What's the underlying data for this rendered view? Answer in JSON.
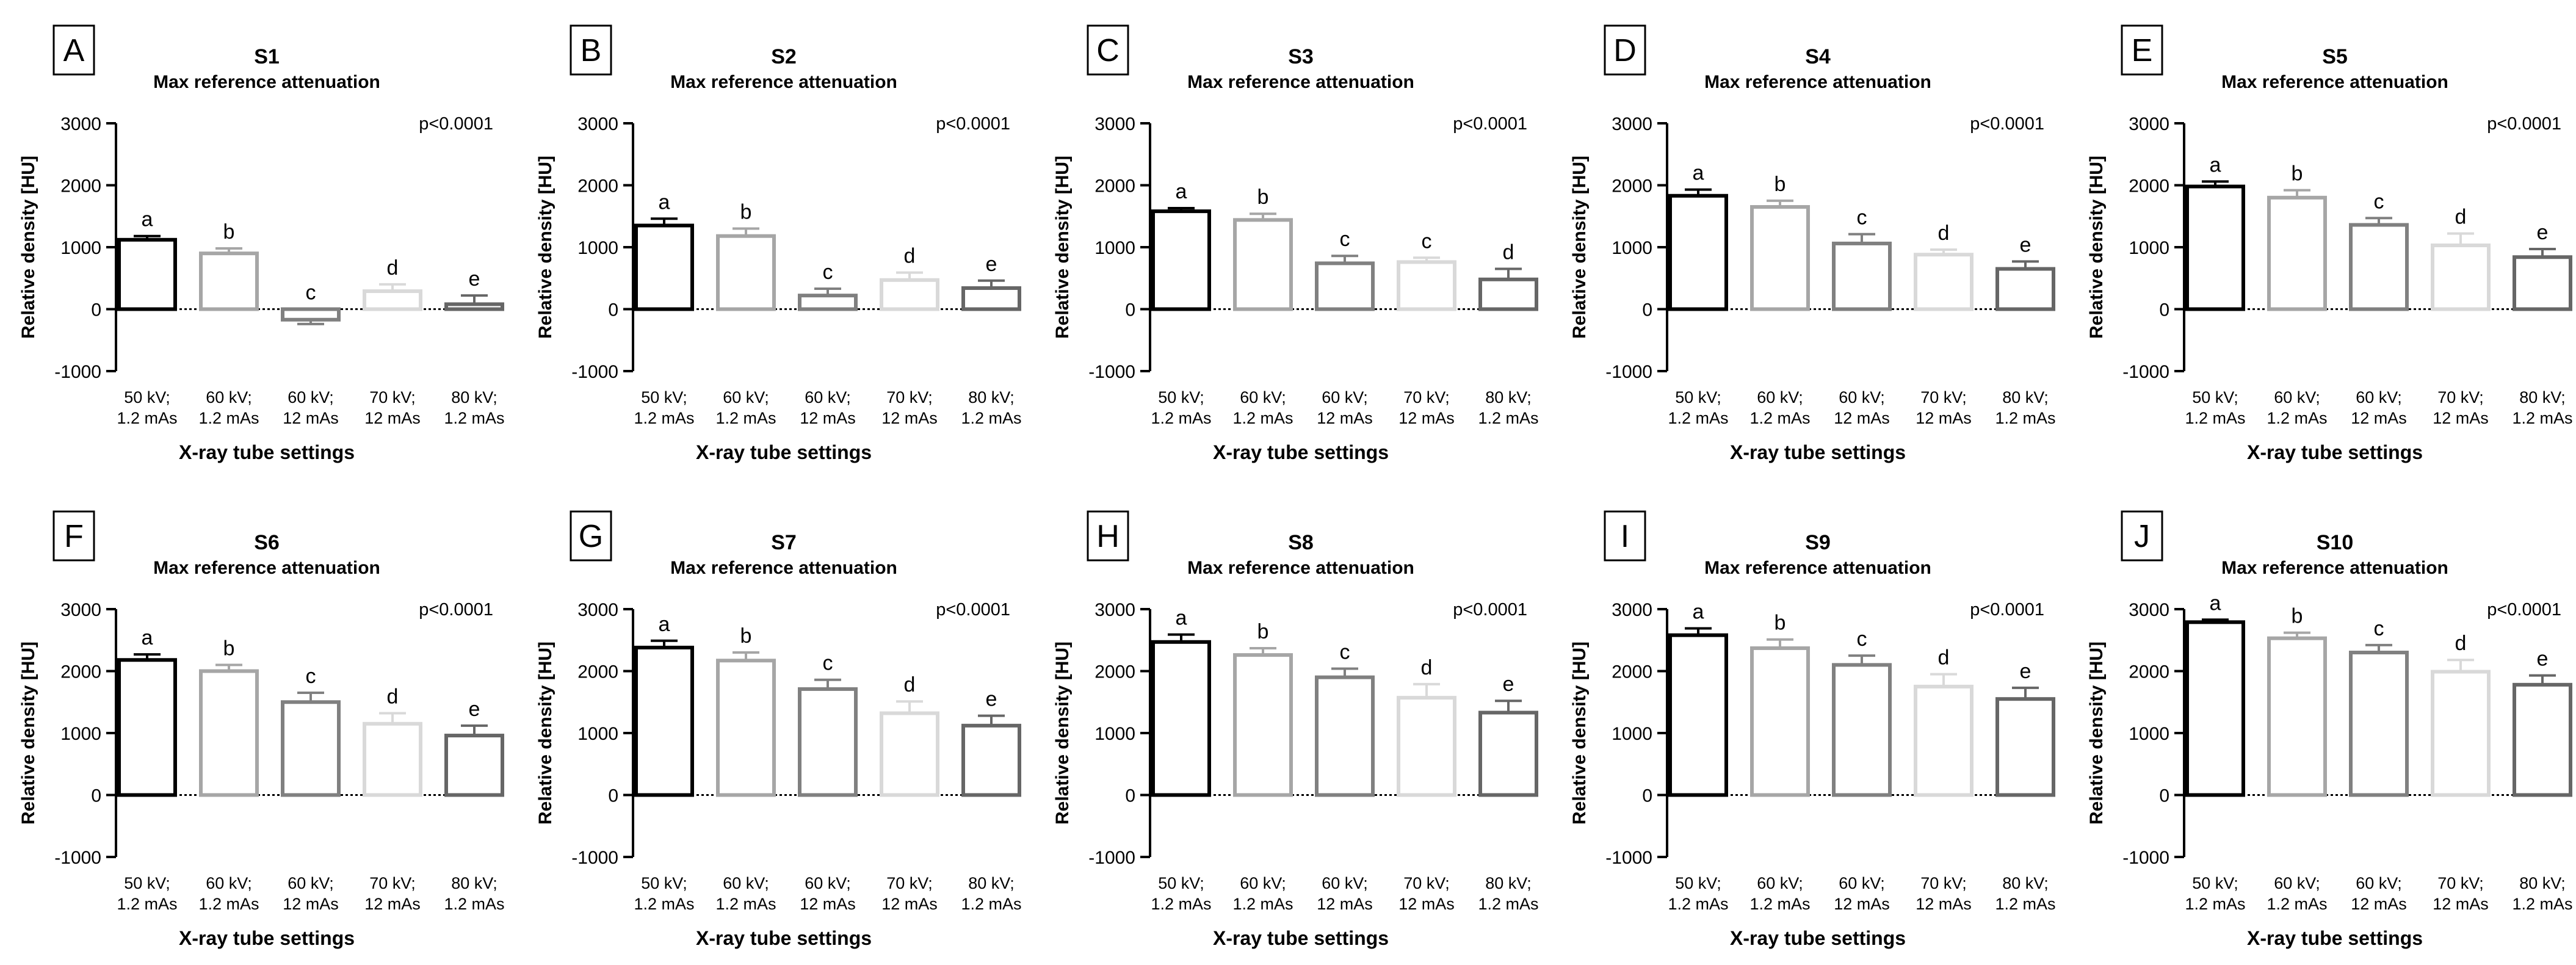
{
  "figure": {
    "ylabel": "Relative density [HU]",
    "xlabel": "X-ray tube settings",
    "subtitle": "Max reference attenuation",
    "categories": [
      [
        "50 kV;",
        "1.2 mAs"
      ],
      [
        "60 kV;",
        "1.2 mAs"
      ],
      [
        "60 kV;",
        "12 mAs"
      ],
      [
        "70 kV;",
        "12 mAs"
      ],
      [
        "80 kV;",
        "1.2 mAs"
      ]
    ],
    "yticks": [
      -1000,
      0,
      1000,
      2000,
      3000
    ],
    "ylim": [
      -1000,
      3000
    ],
    "bar_colors": [
      "#000000",
      "#a6a6a6",
      "#808080",
      "#d9d9d9",
      "#666666"
    ]
  },
  "chart_data": [
    {
      "type": "bar",
      "panel": "A",
      "title": "S1",
      "subtitle": "Max reference attenuation",
      "pvalue": "p<0.0001",
      "categories": [
        "50 kV; 1.2 mAs",
        "60 kV; 1.2 mAs",
        "60 kV; 12 mAs",
        "70 kV; 12 mAs",
        "80 kV; 1.2 mAs"
      ],
      "values": [
        1120,
        900,
        -170,
        290,
        80
      ],
      "errors": [
        60,
        80,
        70,
        110,
        140
      ],
      "letters": [
        "a",
        "b",
        "c",
        "d",
        "e"
      ],
      "ylim": [
        -1000,
        3000
      ],
      "xlabel": "X-ray tube settings",
      "ylabel": "Relative density [HU]"
    },
    {
      "type": "bar",
      "panel": "B",
      "title": "S2",
      "subtitle": "Max reference attenuation",
      "pvalue": "p<0.0001",
      "categories": [
        "50 kV; 1.2 mAs",
        "60 kV; 1.2 mAs",
        "60 kV; 12 mAs",
        "70 kV; 12 mAs",
        "80 kV; 1.2 mAs"
      ],
      "values": [
        1350,
        1180,
        220,
        470,
        340
      ],
      "errors": [
        110,
        120,
        110,
        120,
        120
      ],
      "letters": [
        "a",
        "b",
        "c",
        "d",
        "e"
      ],
      "ylim": [
        -1000,
        3000
      ],
      "xlabel": "X-ray tube settings",
      "ylabel": "Relative density [HU]"
    },
    {
      "type": "bar",
      "panel": "C",
      "title": "S3",
      "subtitle": "Max reference attenuation",
      "pvalue": "p<0.0001",
      "categories": [
        "50 kV; 1.2 mAs",
        "60 kV; 1.2 mAs",
        "60 kV; 12 mAs",
        "70 kV; 12 mAs",
        "80 kV; 1.2 mAs"
      ],
      "values": [
        1580,
        1440,
        740,
        760,
        480
      ],
      "errors": [
        50,
        100,
        120,
        70,
        170
      ],
      "letters": [
        "a",
        "b",
        "c",
        "c",
        "d"
      ],
      "ylim": [
        -1000,
        3000
      ],
      "xlabel": "X-ray tube settings",
      "ylabel": "Relative density [HU]"
    },
    {
      "type": "bar",
      "panel": "D",
      "title": "S4",
      "subtitle": "Max reference attenuation",
      "pvalue": "p<0.0001",
      "categories": [
        "50 kV; 1.2 mAs",
        "60 kV; 1.2 mAs",
        "60 kV; 12 mAs",
        "70 kV; 12 mAs",
        "80 kV; 1.2 mAs"
      ],
      "values": [
        1830,
        1650,
        1060,
        880,
        650
      ],
      "errors": [
        100,
        100,
        150,
        80,
        120
      ],
      "letters": [
        "a",
        "b",
        "c",
        "d",
        "e"
      ],
      "ylim": [
        -1000,
        3000
      ],
      "xlabel": "X-ray tube settings",
      "ylabel": "Relative density [HU]"
    },
    {
      "type": "bar",
      "panel": "E",
      "title": "S5",
      "subtitle": "Max reference attenuation",
      "pvalue": "p<0.0001",
      "categories": [
        "50 kV; 1.2 mAs",
        "60 kV; 1.2 mAs",
        "60 kV; 12 mAs",
        "70 kV; 12 mAs",
        "80 kV; 1.2 mAs"
      ],
      "values": [
        1980,
        1800,
        1360,
        1030,
        840
      ],
      "errors": [
        80,
        120,
        110,
        190,
        130
      ],
      "letters": [
        "a",
        "b",
        "c",
        "d",
        "e"
      ],
      "ylim": [
        -1000,
        3000
      ],
      "xlabel": "X-ray tube settings",
      "ylabel": "Relative density [HU]"
    },
    {
      "type": "bar",
      "panel": "F",
      "title": "S6",
      "subtitle": "Max reference attenuation",
      "pvalue": "p<0.0001",
      "categories": [
        "50 kV; 1.2 mAs",
        "60 kV; 1.2 mAs",
        "60 kV; 12 mAs",
        "70 kV; 12 mAs",
        "80 kV; 1.2 mAs"
      ],
      "values": [
        2180,
        2000,
        1500,
        1150,
        960
      ],
      "errors": [
        90,
        100,
        150,
        170,
        160
      ],
      "letters": [
        "a",
        "b",
        "c",
        "d",
        "e"
      ],
      "ylim": [
        -1000,
        3000
      ],
      "xlabel": "X-ray tube settings",
      "ylabel": "Relative density [HU]"
    },
    {
      "type": "bar",
      "panel": "G",
      "title": "S7",
      "subtitle": "Max reference attenuation",
      "pvalue": "p<0.0001",
      "categories": [
        "50 kV; 1.2 mAs",
        "60 kV; 1.2 mAs",
        "60 kV; 12 mAs",
        "70 kV; 12 mAs",
        "80 kV; 1.2 mAs"
      ],
      "values": [
        2380,
        2170,
        1710,
        1320,
        1120
      ],
      "errors": [
        110,
        130,
        150,
        190,
        160
      ],
      "letters": [
        "a",
        "b",
        "c",
        "d",
        "e"
      ],
      "ylim": [
        -1000,
        3000
      ],
      "xlabel": "X-ray tube settings",
      "ylabel": "Relative density [HU]"
    },
    {
      "type": "bar",
      "panel": "H",
      "title": "S8",
      "subtitle": "Max reference attenuation",
      "pvalue": "p<0.0001",
      "categories": [
        "50 kV; 1.2 mAs",
        "60 kV; 1.2 mAs",
        "60 kV; 12 mAs",
        "70 kV; 12 mAs",
        "80 kV; 1.2 mAs"
      ],
      "values": [
        2470,
        2260,
        1900,
        1570,
        1330
      ],
      "errors": [
        120,
        110,
        140,
        220,
        190
      ],
      "letters": [
        "a",
        "b",
        "c",
        "d",
        "e"
      ],
      "ylim": [
        -1000,
        3000
      ],
      "xlabel": "X-ray tube settings",
      "ylabel": "Relative density [HU]"
    },
    {
      "type": "bar",
      "panel": "I",
      "title": "S9",
      "subtitle": "Max reference attenuation",
      "pvalue": "p<0.0001",
      "categories": [
        "50 kV; 1.2 mAs",
        "60 kV; 1.2 mAs",
        "60 kV; 12 mAs",
        "70 kV; 12 mAs",
        "80 kV; 1.2 mAs"
      ],
      "values": [
        2580,
        2370,
        2100,
        1750,
        1550
      ],
      "errors": [
        110,
        140,
        150,
        200,
        180
      ],
      "letters": [
        "a",
        "b",
        "c",
        "d",
        "e"
      ],
      "ylim": [
        -1000,
        3000
      ],
      "xlabel": "X-ray tube settings",
      "ylabel": "Relative density [HU]"
    },
    {
      "type": "bar",
      "panel": "J",
      "title": "S10",
      "subtitle": "Max reference attenuation",
      "pvalue": "p<0.0001",
      "categories": [
        "50 kV; 1.2 mAs",
        "60 kV; 1.2 mAs",
        "60 kV; 12 mAs",
        "70 kV; 12 mAs",
        "80 kV; 1.2 mAs"
      ],
      "values": [
        2790,
        2530,
        2300,
        1990,
        1780
      ],
      "errors": [
        40,
        90,
        120,
        190,
        150
      ],
      "letters": [
        "a",
        "b",
        "c",
        "d",
        "e"
      ],
      "ylim": [
        -1000,
        3000
      ],
      "xlabel": "X-ray tube settings",
      "ylabel": "Relative density [HU]"
    }
  ]
}
